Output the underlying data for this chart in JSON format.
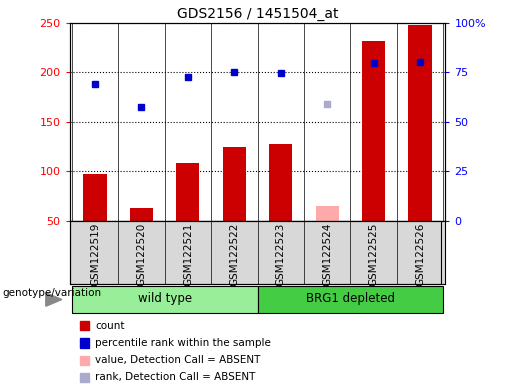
{
  "title": "GDS2156 / 1451504_at",
  "samples": [
    "GSM122519",
    "GSM122520",
    "GSM122521",
    "GSM122522",
    "GSM122523",
    "GSM122524",
    "GSM122525",
    "GSM122526"
  ],
  "bar_values": [
    97,
    63,
    108,
    125,
    128,
    null,
    232,
    248
  ],
  "bar_absent_values": [
    null,
    null,
    null,
    null,
    null,
    65,
    null,
    null
  ],
  "dot_values": [
    188,
    165,
    195,
    200,
    199,
    null,
    210,
    211
  ],
  "dot_absent_values": [
    null,
    null,
    null,
    null,
    null,
    168,
    null,
    null
  ],
  "bar_color": "#cc0000",
  "bar_absent_color": "#ffaaaa",
  "dot_color": "#0000cc",
  "dot_absent_color": "#aaaacc",
  "ylim_left": [
    50,
    250
  ],
  "ylim_right": [
    0,
    100
  ],
  "yticks_left": [
    50,
    100,
    150,
    200,
    250
  ],
  "yticks_right": [
    0,
    25,
    50,
    75,
    100
  ],
  "ytick_labels_right": [
    "0",
    "25",
    "50",
    "75",
    "100%"
  ],
  "wt_color": "#99ee99",
  "brg1_color": "#44cc44",
  "group_label": "genotype/variation",
  "legend_items": [
    {
      "color": "#cc0000",
      "label": "count"
    },
    {
      "color": "#0000cc",
      "label": "percentile rank within the sample"
    },
    {
      "color": "#ffaaaa",
      "label": "value, Detection Call = ABSENT"
    },
    {
      "color": "#aaaacc",
      "label": "rank, Detection Call = ABSENT"
    }
  ],
  "background_color": "#d8d8d8",
  "bar_width": 0.5,
  "dot_size": 5
}
